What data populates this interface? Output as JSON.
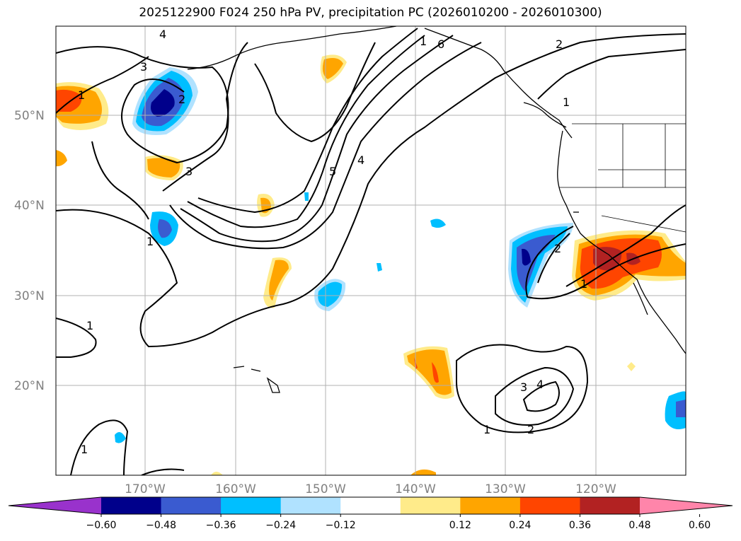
{
  "title": "2025122900 F024 250 hPa PV, precipitation PC (2026010200 - 2026010300)",
  "map": {
    "lat_labels": [
      "50°N",
      "40°N",
      "30°N",
      "20°N"
    ],
    "lon_labels": [
      "170°W",
      "160°W",
      "150°W",
      "140°W",
      "130°W",
      "120°W"
    ],
    "lat_values": [
      50,
      40,
      30,
      20
    ],
    "lon_values": [
      -170,
      -160,
      -150,
      -140,
      -130,
      -120
    ],
    "lon_range": [
      -180,
      -110
    ],
    "lat_range": [
      10,
      60
    ],
    "grid": true,
    "pv_contour_labels": [
      "4",
      "3",
      "2",
      "1",
      "6",
      "2",
      "1",
      "3",
      "5",
      "4",
      "1",
      "2",
      "1",
      "3",
      "4",
      "1",
      "2",
      "1",
      "1",
      "1"
    ]
  },
  "colorbar": {
    "tick_labels": [
      "−0.60",
      "−0.48",
      "−0.36",
      "−0.24",
      "−0.12",
      "0.12",
      "0.24",
      "0.36",
      "0.48",
      "0.60"
    ],
    "colors": [
      "#9932cc",
      "#00008b",
      "#3a5bd0",
      "#00bfff",
      "#b0e2ff",
      "#ffffff",
      "#ffeb8a",
      "#ffa500",
      "#ff4500",
      "#b22222",
      "#ff85aa"
    ],
    "extend": "both"
  },
  "colors": {
    "grid": "#b0b0b0",
    "contour": "#000000",
    "axis_label": "#808080"
  }
}
